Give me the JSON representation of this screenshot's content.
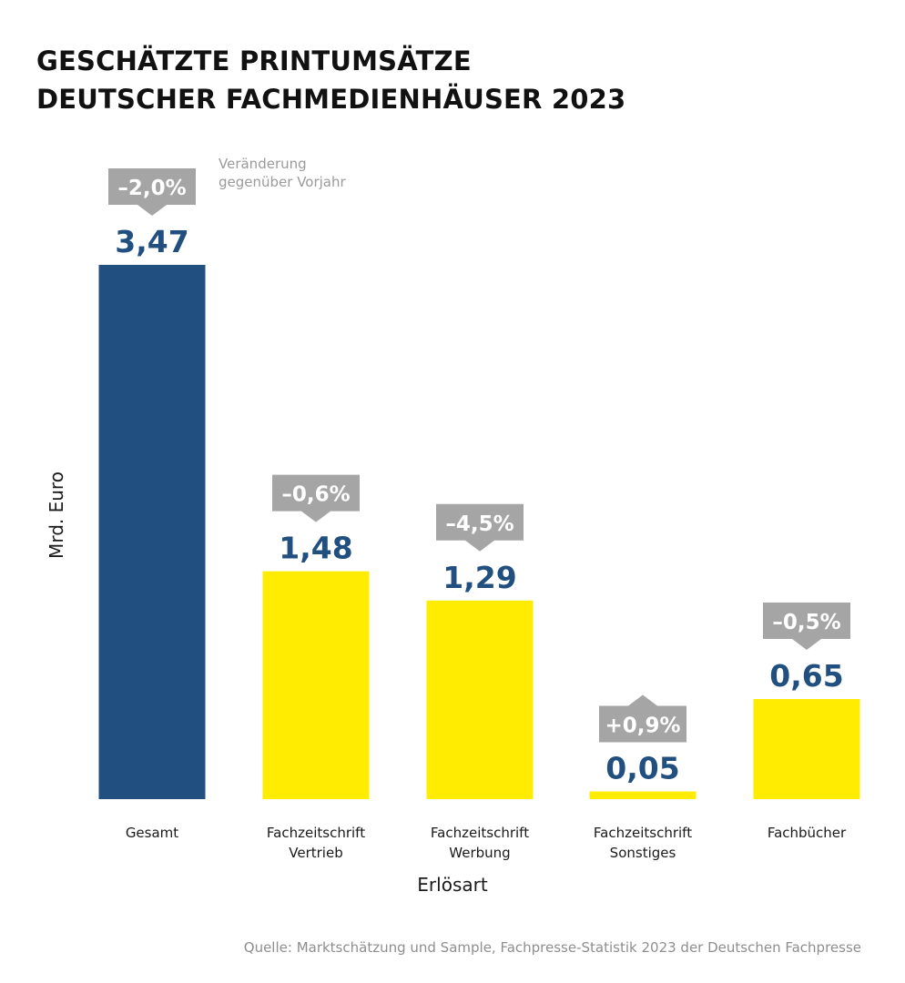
{
  "title_line1": "GESCHÄTZTE PRINTUMSÄTZE",
  "title_line2": "DEUTSCHER FACHMEDIENHÄUSER 2023",
  "legend_note_line1": "Veränderung",
  "legend_note_line2": "gegenüber Vorjahr",
  "source": "Quelle: Marktschätzung und Sample, Fachpresse-Statistik 2023 der Deutschen Fachpresse",
  "colors": {
    "total": "#214f7f",
    "segment": "#ffec00",
    "value_label": "#214f7f",
    "change_box": "#a5a5a5",
    "change_text": "#ffffff"
  },
  "chart_data": {
    "type": "bar",
    "title": "GESCHÄTZTE PRINTUMSÄTZE DEUTSCHER FACHMEDIENHÄUSER 2023",
    "xlabel": "Erlösart",
    "ylabel": "Mrd. Euro",
    "ylim": [
      0,
      3.47
    ],
    "grid": false,
    "categories": [
      [
        "Gesamt"
      ],
      [
        "Fachzeitschrift",
        "Vertrieb"
      ],
      [
        "Fachzeitschrift",
        "Werbung"
      ],
      [
        "Fachzeitschrift",
        "Sonstiges"
      ],
      [
        "Fachbücher"
      ]
    ],
    "values": [
      3.47,
      1.48,
      1.29,
      0.05,
      0.65
    ],
    "value_labels": [
      "3,47",
      "1,48",
      "1,29",
      "0,05",
      "0,65"
    ],
    "changes": [
      "–2,0%",
      "–0,6%",
      "–4,5%",
      "+0,9%",
      "–0,5%"
    ],
    "change_direction": [
      "down",
      "down",
      "down",
      "up",
      "down"
    ],
    "bar_colors": [
      "#214f7f",
      "#ffec00",
      "#ffec00",
      "#ffec00",
      "#ffec00"
    ]
  }
}
